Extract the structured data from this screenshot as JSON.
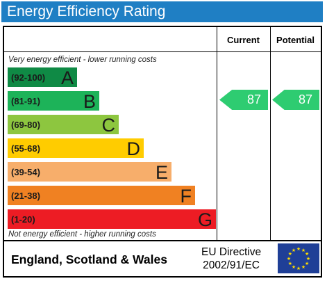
{
  "header": {
    "title": "Energy Efficiency Rating",
    "color": "#1f7fc4"
  },
  "columns": {
    "current": "Current",
    "potential": "Potential"
  },
  "notes": {
    "top": "Very energy efficient - lower running costs",
    "bottom": "Not energy efficient - higher running costs"
  },
  "bands": [
    {
      "range": "(92-100)",
      "letter": "A",
      "color": "#0f8a45"
    },
    {
      "range": "(81-91)",
      "letter": "B",
      "color": "#1db359"
    },
    {
      "range": "(69-80)",
      "letter": "C",
      "color": "#8dc63f"
    },
    {
      "range": "(55-68)",
      "letter": "D",
      "color": "#ffcc00"
    },
    {
      "range": "(39-54)",
      "letter": "E",
      "color": "#f7ae6b"
    },
    {
      "range": "(21-38)",
      "letter": "F",
      "color": "#f08122"
    },
    {
      "range": "(1-20)",
      "letter": "G",
      "color": "#ed1c24"
    }
  ],
  "current_rating": {
    "value": "87",
    "band": "B",
    "color": "#2ecc71"
  },
  "potential_rating": {
    "value": "87",
    "band": "B",
    "color": "#2ecc71"
  },
  "footer": {
    "country": "England, Scotland & Wales",
    "directive_line1": "EU Directive",
    "directive_line2": "2002/91/EC",
    "flag_icon": "eu-flag-icon"
  }
}
